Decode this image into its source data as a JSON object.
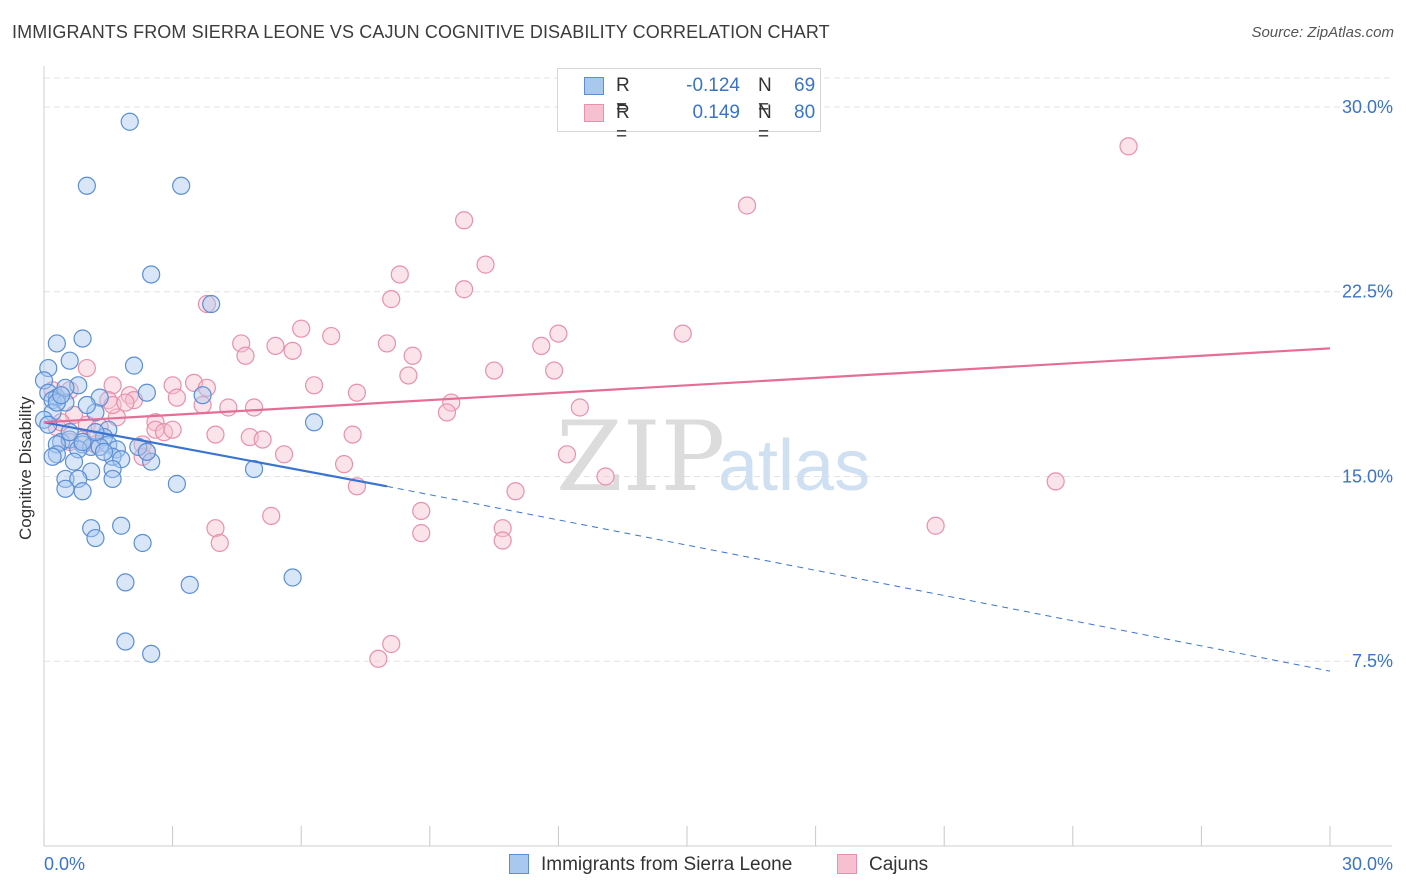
{
  "title": "IMMIGRANTS FROM SIERRA LEONE VS CAJUN COGNITIVE DISABILITY CORRELATION CHART",
  "source": "Source: ZipAtlas.com",
  "watermark": {
    "zip": "ZIP",
    "atlas": "atlas"
  },
  "colors": {
    "blue_fill": "#a9c8f0",
    "blue_stroke": "#5a8fd6",
    "blue_line": "#3a74d0",
    "pink_fill": "#f6c0d0",
    "pink_stroke": "#e890ad",
    "pink_line": "#e46e98",
    "value_text": "#3a74c9",
    "grid": "#e3e3e3"
  },
  "legend_top": {
    "rows": [
      {
        "r_label": "R =",
        "r_value": "-0.124",
        "n_label": "N =",
        "n_value": "69",
        "series": "blue"
      },
      {
        "r_label": "R =",
        "r_value": "0.149",
        "n_label": "N =",
        "n_value": "80",
        "series": "pink"
      }
    ]
  },
  "chart_data": {
    "type": "scatter",
    "title": "IMMIGRANTS FROM SIERRA LEONE VS CAJUN COGNITIVE DISABILITY CORRELATION CHART",
    "xlabel": "",
    "ylabel": "Cognitive Disability",
    "xlim": [
      0,
      30
    ],
    "ylim": [
      0,
      31.5
    ],
    "x_tick_labels": [
      "0.0%",
      "30.0%"
    ],
    "y_ticks": [
      7.5,
      15.0,
      22.5,
      30.0
    ],
    "y_tick_labels": [
      "7.5%",
      "15.0%",
      "22.5%",
      "30.0%"
    ],
    "grid": true,
    "legend_placement": "bottom",
    "series": [
      {
        "name": "Immigrants from Sierra Leone",
        "color": "blue",
        "trend": {
          "x": [
            0.0,
            8.0
          ],
          "y": [
            17.2,
            14.6
          ],
          "dashed_extension": {
            "x": [
              8.0,
              30.0
            ],
            "y": [
              14.6,
              7.1
            ]
          }
        },
        "points": [
          [
            2.0,
            29.4
          ],
          [
            1.0,
            26.8
          ],
          [
            3.2,
            26.8
          ],
          [
            2.5,
            23.2
          ],
          [
            3.9,
            22.0
          ],
          [
            0.3,
            20.4
          ],
          [
            0.9,
            20.6
          ],
          [
            0.6,
            19.7
          ],
          [
            0.1,
            19.4
          ],
          [
            2.1,
            19.5
          ],
          [
            0.0,
            18.9
          ],
          [
            0.8,
            18.7
          ],
          [
            0.1,
            18.4
          ],
          [
            0.3,
            18.2
          ],
          [
            0.2,
            18.1
          ],
          [
            0.5,
            18.0
          ],
          [
            1.3,
            18.2
          ],
          [
            2.4,
            18.4
          ],
          [
            3.7,
            18.3
          ],
          [
            0.2,
            17.6
          ],
          [
            1.2,
            17.6
          ],
          [
            0.0,
            17.3
          ],
          [
            1.5,
            16.9
          ],
          [
            1.4,
            16.6
          ],
          [
            0.4,
            16.4
          ],
          [
            0.6,
            16.5
          ],
          [
            0.9,
            16.3
          ],
          [
            0.3,
            16.3
          ],
          [
            1.1,
            16.2
          ],
          [
            1.5,
            16.3
          ],
          [
            1.3,
            16.2
          ],
          [
            1.7,
            16.1
          ],
          [
            0.8,
            16.1
          ],
          [
            2.2,
            16.2
          ],
          [
            0.3,
            15.9
          ],
          [
            1.6,
            15.8
          ],
          [
            0.7,
            15.6
          ],
          [
            1.8,
            15.7
          ],
          [
            2.5,
            15.6
          ],
          [
            1.1,
            15.2
          ],
          [
            1.6,
            15.3
          ],
          [
            4.9,
            15.3
          ],
          [
            0.5,
            14.9
          ],
          [
            0.8,
            14.9
          ],
          [
            1.6,
            14.9
          ],
          [
            3.1,
            14.7
          ],
          [
            0.5,
            14.5
          ],
          [
            0.9,
            14.4
          ],
          [
            6.3,
            17.2
          ],
          [
            1.1,
            12.9
          ],
          [
            1.8,
            13.0
          ],
          [
            1.2,
            12.5
          ],
          [
            2.3,
            12.3
          ],
          [
            1.9,
            10.7
          ],
          [
            3.4,
            10.6
          ],
          [
            5.8,
            10.9
          ],
          [
            1.9,
            8.3
          ],
          [
            2.5,
            7.8
          ],
          [
            0.3,
            18.0
          ],
          [
            0.1,
            17.1
          ],
          [
            0.9,
            16.4
          ],
          [
            1.4,
            16.0
          ],
          [
            0.5,
            18.6
          ],
          [
            0.2,
            15.8
          ],
          [
            1.0,
            17.9
          ],
          [
            2.4,
            16.0
          ],
          [
            0.6,
            16.8
          ],
          [
            1.2,
            16.8
          ],
          [
            0.4,
            18.3
          ]
        ]
      },
      {
        "name": "Cajuns",
        "color": "pink",
        "trend": {
          "x": [
            0.0,
            30.0
          ],
          "y": [
            17.2,
            20.2
          ]
        },
        "points": [
          [
            25.3,
            28.4
          ],
          [
            16.4,
            26.0
          ],
          [
            9.8,
            25.4
          ],
          [
            10.3,
            23.6
          ],
          [
            8.3,
            23.2
          ],
          [
            9.8,
            22.6
          ],
          [
            8.1,
            22.2
          ],
          [
            3.8,
            22.0
          ],
          [
            6.0,
            21.0
          ],
          [
            6.7,
            20.7
          ],
          [
            12.0,
            20.8
          ],
          [
            14.9,
            20.8
          ],
          [
            4.6,
            20.4
          ],
          [
            5.4,
            20.3
          ],
          [
            5.8,
            20.1
          ],
          [
            8.0,
            20.4
          ],
          [
            11.6,
            20.3
          ],
          [
            4.7,
            19.9
          ],
          [
            8.6,
            19.9
          ],
          [
            1.0,
            19.4
          ],
          [
            10.5,
            19.3
          ],
          [
            11.9,
            19.3
          ],
          [
            8.5,
            19.1
          ],
          [
            3.0,
            18.7
          ],
          [
            3.5,
            18.8
          ],
          [
            1.6,
            18.7
          ],
          [
            3.8,
            18.6
          ],
          [
            6.3,
            18.7
          ],
          [
            7.3,
            18.4
          ],
          [
            2.0,
            18.3
          ],
          [
            3.1,
            18.2
          ],
          [
            1.5,
            18.1
          ],
          [
            2.1,
            18.1
          ],
          [
            0.6,
            18.5
          ],
          [
            0.2,
            18.5
          ],
          [
            9.5,
            18.0
          ],
          [
            4.3,
            17.8
          ],
          [
            3.7,
            17.9
          ],
          [
            4.9,
            17.8
          ],
          [
            12.5,
            17.8
          ],
          [
            1.7,
            17.4
          ],
          [
            0.7,
            17.5
          ],
          [
            2.6,
            17.2
          ],
          [
            9.4,
            17.6
          ],
          [
            1.0,
            17.1
          ],
          [
            1.3,
            17.0
          ],
          [
            2.6,
            16.9
          ],
          [
            2.8,
            16.8
          ],
          [
            3.0,
            16.9
          ],
          [
            4.0,
            16.7
          ],
          [
            4.8,
            16.6
          ],
          [
            5.1,
            16.5
          ],
          [
            7.2,
            16.7
          ],
          [
            0.3,
            17.0
          ],
          [
            0.4,
            17.2
          ],
          [
            2.3,
            16.3
          ],
          [
            2.4,
            16.0
          ],
          [
            0.6,
            16.4
          ],
          [
            1.2,
            16.3
          ],
          [
            5.6,
            15.9
          ],
          [
            7.0,
            15.5
          ],
          [
            12.2,
            15.9
          ],
          [
            13.1,
            15.0
          ],
          [
            7.3,
            14.6
          ],
          [
            11.0,
            14.4
          ],
          [
            23.6,
            14.8
          ],
          [
            8.8,
            13.6
          ],
          [
            5.3,
            13.4
          ],
          [
            20.8,
            13.0
          ],
          [
            4.0,
            12.9
          ],
          [
            10.7,
            12.9
          ],
          [
            8.8,
            12.7
          ],
          [
            4.1,
            12.3
          ],
          [
            10.7,
            12.4
          ],
          [
            8.1,
            8.2
          ],
          [
            7.8,
            7.6
          ],
          [
            2.3,
            15.8
          ],
          [
            0.9,
            16.5
          ],
          [
            1.6,
            17.9
          ],
          [
            1.9,
            18.0
          ]
        ]
      }
    ]
  },
  "legend_bottom": [
    {
      "label": "Immigrants from Sierra Leone",
      "series": "blue"
    },
    {
      "label": "Cajuns",
      "series": "pink"
    }
  ]
}
